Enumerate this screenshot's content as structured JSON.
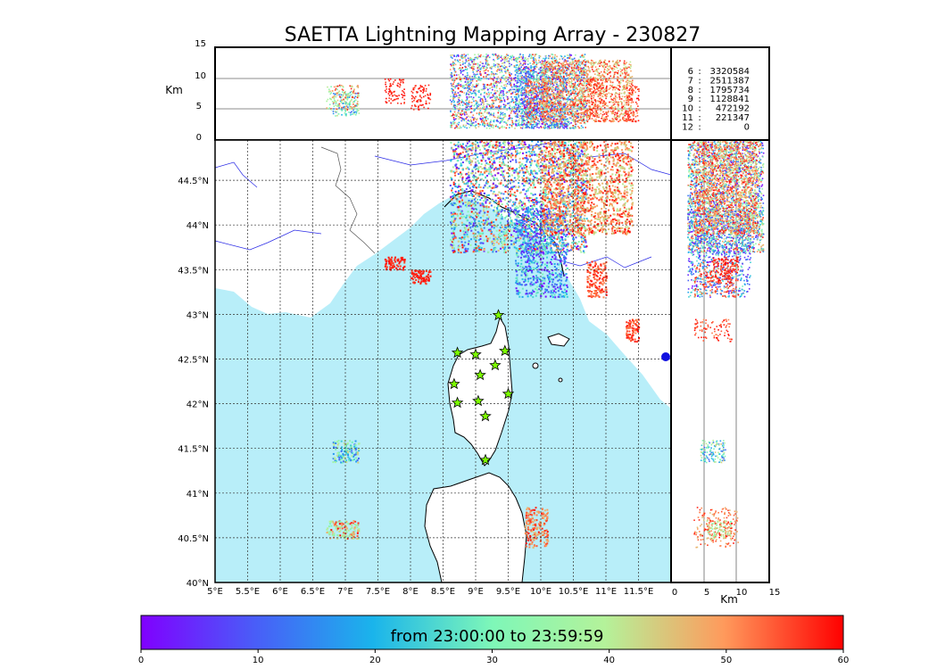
{
  "title": "SAETTA Lightning Mapping Array - 230827",
  "colorbar": {
    "label": "from 23:00:00 to 23:59:59",
    "ticks": [
      "0",
      "10",
      "20",
      "30",
      "40",
      "50",
      "60"
    ],
    "range": [
      0,
      60
    ]
  },
  "top_panel": {
    "ylabel": "Km",
    "yticks": [
      "0",
      "5",
      "10",
      "15"
    ]
  },
  "right_panel": {
    "xlabel": "Km",
    "xticks": [
      "0",
      "5",
      "10",
      "15"
    ]
  },
  "stations_table": [
    {
      "key": "6",
      "value": "3320584",
      "color": "#000000"
    },
    {
      "key": "7",
      "value": "2511387",
      "color": "#ff0000"
    },
    {
      "key": "8",
      "value": "1795734",
      "color": "#000000"
    },
    {
      "key": "9",
      "value": "1128841",
      "color": "#000000"
    },
    {
      "key": "10",
      "value": "472192",
      "color": "#000000"
    },
    {
      "key": "11",
      "value": "221347",
      "color": "#000000"
    },
    {
      "key": "12",
      "value": "0",
      "color": "#000000"
    }
  ],
  "colors": {
    "sea": "#b8eef9",
    "land": "#ffffff",
    "river": "#2a2ae6",
    "border": "#555555",
    "coast": "#000000",
    "station_fill": "#7cfc00"
  },
  "chart_data": {
    "type": "scatter",
    "map": {
      "lon_ticks": [
        "5°E",
        "5.5°E",
        "6°E",
        "6.5°E",
        "7°E",
        "7.5°E",
        "8°E",
        "8.5°E",
        "9°E",
        "9.5°E",
        "10°E",
        "10.5°E",
        "11°E",
        "11.5°E"
      ],
      "lat_ticks": [
        "40°N",
        "40.5°N",
        "41°N",
        "41.5°N",
        "42°N",
        "42.5°N",
        "43°N",
        "43.5°N",
        "44°N",
        "44.5°N"
      ],
      "xlim": [
        5.0,
        12.0
      ],
      "ylim": [
        40.0,
        44.95
      ],
      "grid": true
    },
    "altitude_ylim": [
      0,
      15
    ],
    "altitude_xlim": [
      0,
      15
    ],
    "time_range_minutes": [
      0,
      60
    ],
    "stations": [
      {
        "lon": 9.35,
        "lat": 42.99
      },
      {
        "lon": 8.72,
        "lat": 42.57
      },
      {
        "lon": 9.0,
        "lat": 42.55
      },
      {
        "lon": 9.45,
        "lat": 42.59
      },
      {
        "lon": 9.3,
        "lat": 42.43
      },
      {
        "lon": 9.07,
        "lat": 42.32
      },
      {
        "lon": 8.67,
        "lat": 42.22
      },
      {
        "lon": 9.5,
        "lat": 42.11
      },
      {
        "lon": 8.72,
        "lat": 42.01
      },
      {
        "lon": 9.04,
        "lat": 42.03
      },
      {
        "lon": 9.15,
        "lat": 41.86
      },
      {
        "lon": 9.15,
        "lat": 41.37
      }
    ],
    "clusters": [
      {
        "name": "ligurian-sea-main",
        "lon": [
          8.6,
          10.7
        ],
        "lat": [
          43.7,
          44.95
        ],
        "t": [
          0,
          60
        ],
        "alt": [
          2,
          14
        ]
      },
      {
        "name": "tuscany-coast",
        "lon": [
          9.6,
          10.4
        ],
        "lat": [
          43.2,
          44.2
        ],
        "t": [
          0,
          30
        ],
        "alt": [
          2,
          12
        ]
      },
      {
        "name": "apennines",
        "lon": [
          10.0,
          11.4
        ],
        "lat": [
          43.9,
          44.95
        ],
        "t": [
          40,
          60
        ],
        "alt": [
          3,
          13
        ]
      },
      {
        "name": "provence-west",
        "lon": [
          7.6,
          7.9
        ],
        "lat": [
          43.5,
          43.65
        ],
        "t": [
          55,
          60
        ],
        "alt": [
          6,
          10
        ]
      },
      {
        "name": "provence-east",
        "lon": [
          8.0,
          8.3
        ],
        "lat": [
          43.35,
          43.5
        ],
        "t": [
          55,
          60
        ],
        "alt": [
          5,
          9
        ]
      },
      {
        "name": "elba-north",
        "lon": [
          10.7,
          11.0
        ],
        "lat": [
          43.2,
          43.6
        ],
        "t": [
          50,
          60
        ],
        "alt": [
          3,
          10
        ]
      },
      {
        "name": "grosseto",
        "lon": [
          11.3,
          11.5
        ],
        "lat": [
          42.7,
          42.95
        ],
        "t": [
          50,
          60
        ],
        "alt": [
          3,
          9
        ]
      },
      {
        "name": "west-corsica",
        "lon": [
          6.8,
          7.2
        ],
        "lat": [
          41.35,
          41.6
        ],
        "t": [
          10,
          45
        ],
        "alt": [
          4,
          8
        ]
      },
      {
        "name": "sardinia-east",
        "lon": [
          9.75,
          10.1
        ],
        "lat": [
          40.4,
          40.85
        ],
        "t": [
          45,
          60
        ],
        "alt": [
          3,
          10
        ]
      },
      {
        "name": "sardinia-west",
        "lon": [
          6.7,
          7.2
        ],
        "lat": [
          40.5,
          40.7
        ],
        "t": [
          30,
          60
        ],
        "alt": [
          5,
          9
        ]
      }
    ]
  }
}
